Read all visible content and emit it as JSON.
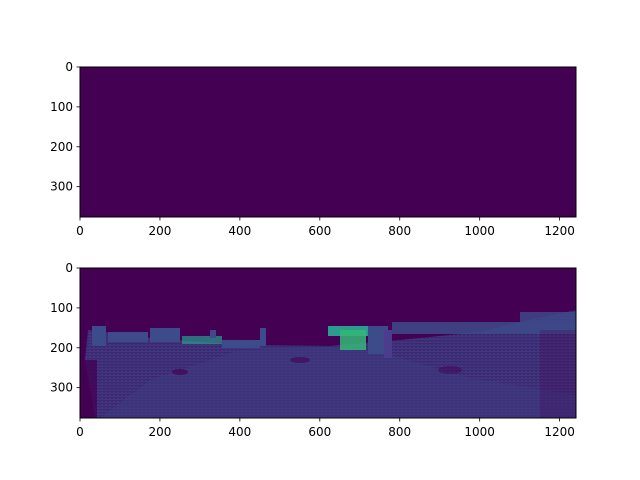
{
  "chart_data": [
    {
      "type": "heatmap",
      "title": "",
      "xlabel": "",
      "ylabel": "",
      "xlim": [
        0,
        1241
      ],
      "ylim": [
        376,
        0
      ],
      "xticks": [
        0,
        200,
        400,
        600,
        800,
        1000,
        1200
      ],
      "yticks": [
        0,
        100,
        200,
        300
      ],
      "colormap": "viridis",
      "content": "uniform",
      "fill_color": "#440154"
    },
    {
      "type": "heatmap",
      "title": "",
      "xlabel": "",
      "ylabel": "",
      "xlim": [
        0,
        1241
      ],
      "ylim": [
        376,
        0
      ],
      "xticks": [
        0,
        200,
        400,
        600,
        800,
        1000,
        1200
      ],
      "yticks": [
        0,
        100,
        200,
        300
      ],
      "colormap": "viridis",
      "content": "sparse lidar depth map of a street scene (empty above horizon near y≈110–200)",
      "colors": {
        "background": "#440154",
        "ground": "#3b2a72",
        "mid": "#3e4b8a",
        "bright": "#2a9d8f",
        "highlight": "#35b779"
      }
    }
  ]
}
